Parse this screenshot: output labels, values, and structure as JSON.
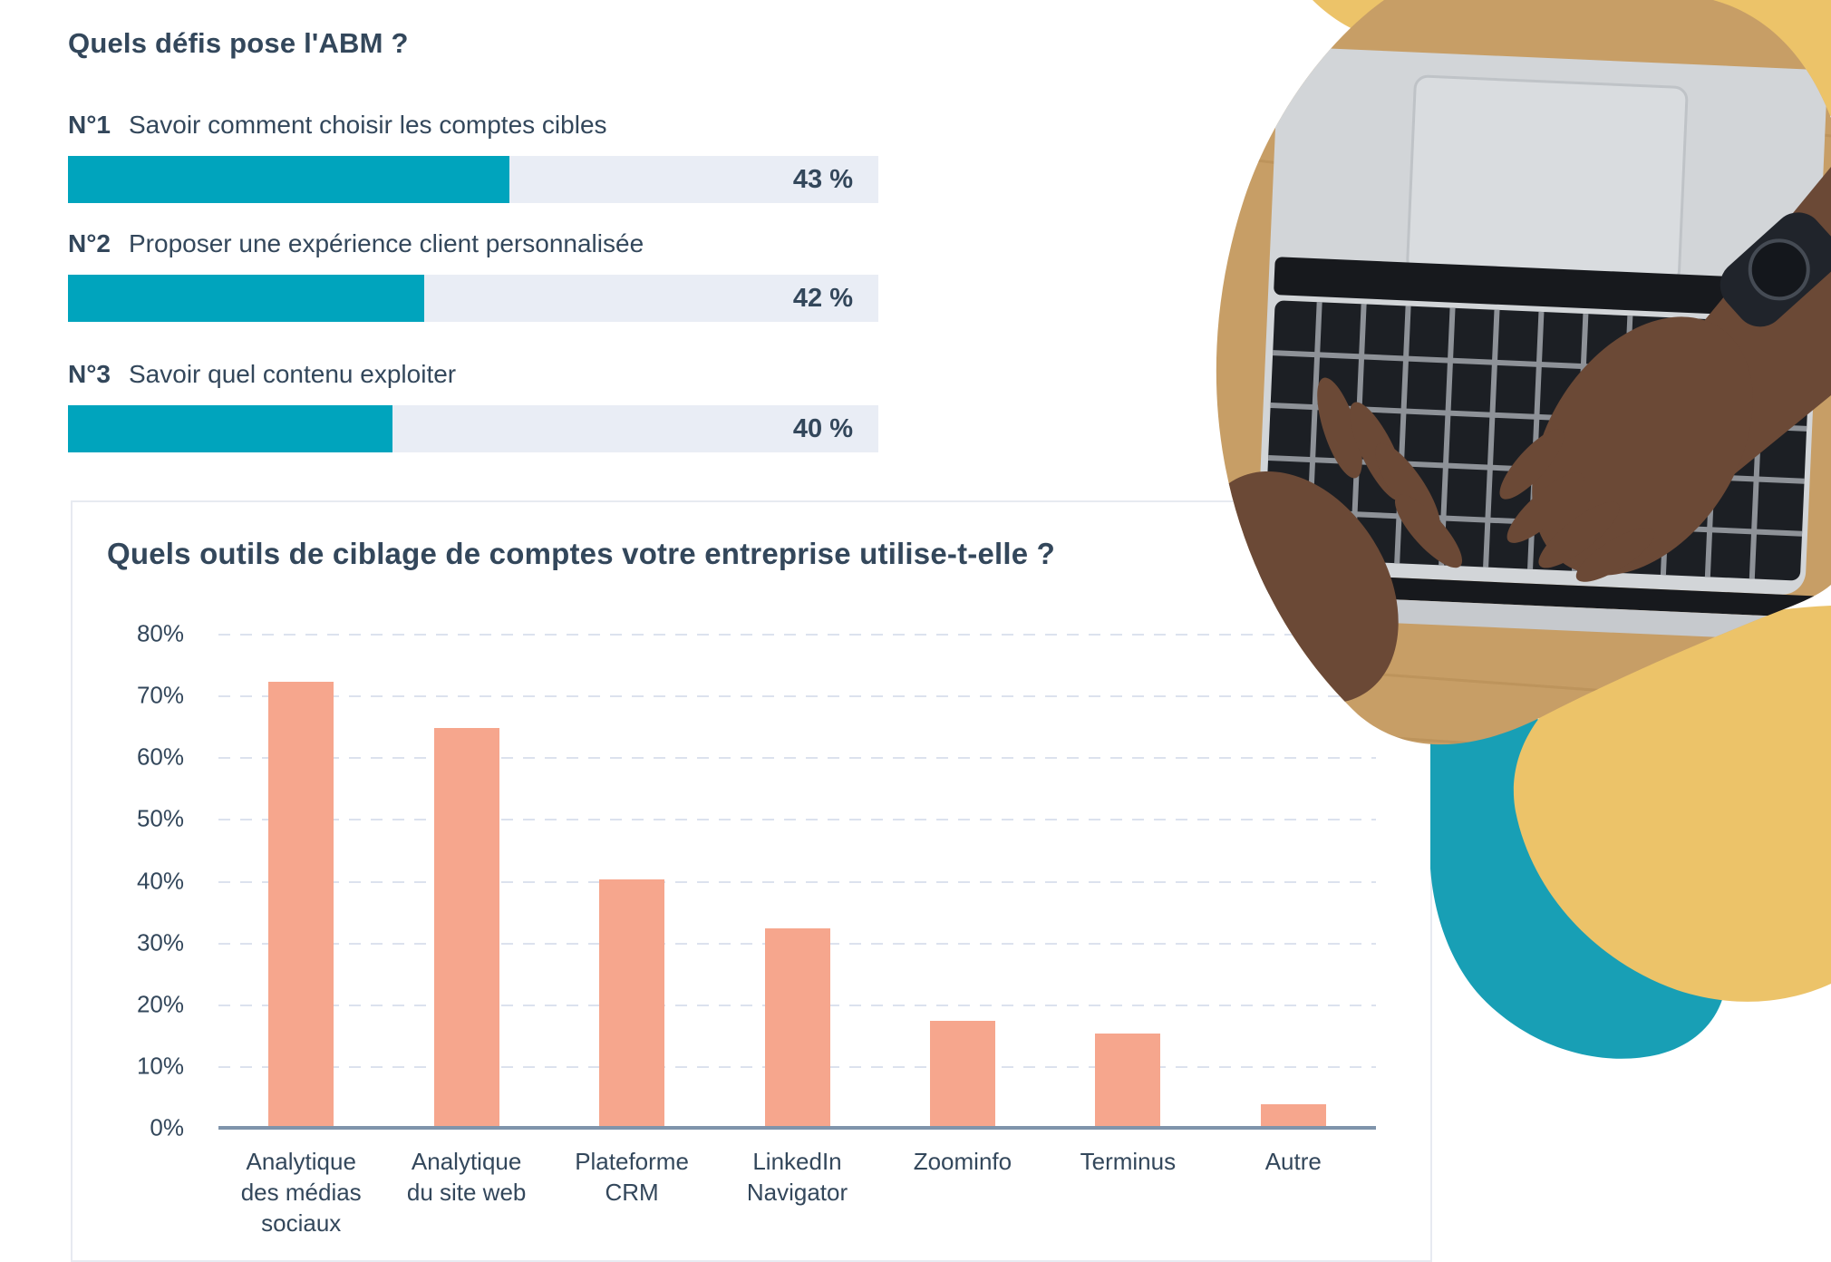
{
  "colors": {
    "navy_text": "#33475b",
    "teal_bar": "#00a4bd",
    "teal_blob": "#189fb5",
    "salmon_bar": "#f6a68d",
    "yellow_blob": "#ecc369",
    "track_background": "#e9edf5",
    "gridline": "#dce2ee",
    "axis_line": "#7f94ab",
    "card_border": "#e7eaf1"
  },
  "challenges": {
    "title": "Quels défis pose  l'ABM ?",
    "items": [
      {
        "rank": "N°1",
        "label": "Savoir comment choisir les comptes cibles",
        "value": "43 %",
        "fill_pct": 54.5
      },
      {
        "rank": "N°2",
        "label": "Proposer une expérience client personnalisée",
        "value": "42 %",
        "fill_pct": 44
      },
      {
        "rank": "N°3",
        "label": "Savoir quel contenu exploiter",
        "value": "40 %",
        "fill_pct": 40
      }
    ]
  },
  "chart_data": {
    "type": "bar",
    "title": "Quels outils de ciblage de comptes votre entreprise utilise-t-elle ?",
    "categories": [
      "Analytique\ndes médias\nsociaux",
      "Analytique\ndu site web",
      "Plateforme\nCRM",
      "LinkedIn\nNavigator",
      "Zoominfo",
      "Terminus",
      "Autre"
    ],
    "values": [
      72,
      64.5,
      40,
      32,
      17,
      15,
      3.5
    ],
    "unit": "%",
    "xlabel": "",
    "ylabel": "",
    "ylim": [
      0,
      80
    ],
    "ytick_step": 10,
    "ytick_labels": [
      "0%",
      "10%",
      "20%",
      "30%",
      "40%",
      "50%",
      "60%",
      "70%",
      "80%"
    ],
    "grid": "horizontal-dashed",
    "legend": "none",
    "bar_color": "#f6a68d"
  }
}
